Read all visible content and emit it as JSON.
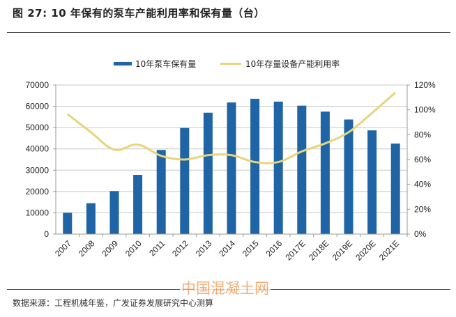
{
  "header": {
    "title": "图 27:  10 年保有的泵车产能利用率和保有量（台）"
  },
  "footer": {
    "source": "数据来源：工程机械年鉴，广发证券发展研究中心测算",
    "watermark": "中国混凝土网"
  },
  "chart_data": {
    "type": "bar",
    "title": "",
    "categories": [
      "2007",
      "2008",
      "2009",
      "2010",
      "2011",
      "2012",
      "2013",
      "2014",
      "2015",
      "2016",
      "2017E",
      "2018E",
      "2019E",
      "2020E",
      "2021E"
    ],
    "series": [
      {
        "name": "10年泵车保有量",
        "type": "bar",
        "axis": "left",
        "color": "#1f64a4",
        "values": [
          10000,
          14500,
          20200,
          27800,
          39500,
          49800,
          57000,
          61800,
          63500,
          62200,
          60300,
          57500,
          53800,
          48700,
          42500
        ]
      },
      {
        "name": "10年存量设备产能利用率",
        "type": "line",
        "axis": "right",
        "color": "#e8d47a",
        "values": [
          96.5,
          82,
          68,
          72,
          63,
          60,
          63.5,
          63.5,
          58,
          58,
          66.5,
          73,
          82,
          97.5,
          114
        ]
      }
    ],
    "left_axis": {
      "min": 0,
      "max": 70000,
      "ticks": [
        "0",
        "10000",
        "20000",
        "30000",
        "40000",
        "50000",
        "60000",
        "70000"
      ]
    },
    "right_axis": {
      "min": 0,
      "max": 120,
      "ticks": [
        "0%",
        "20%",
        "40%",
        "60%",
        "80%",
        "100%",
        "120%"
      ]
    },
    "xlabel": "",
    "ylabel": "",
    "grid": true,
    "legend": "top-center"
  }
}
